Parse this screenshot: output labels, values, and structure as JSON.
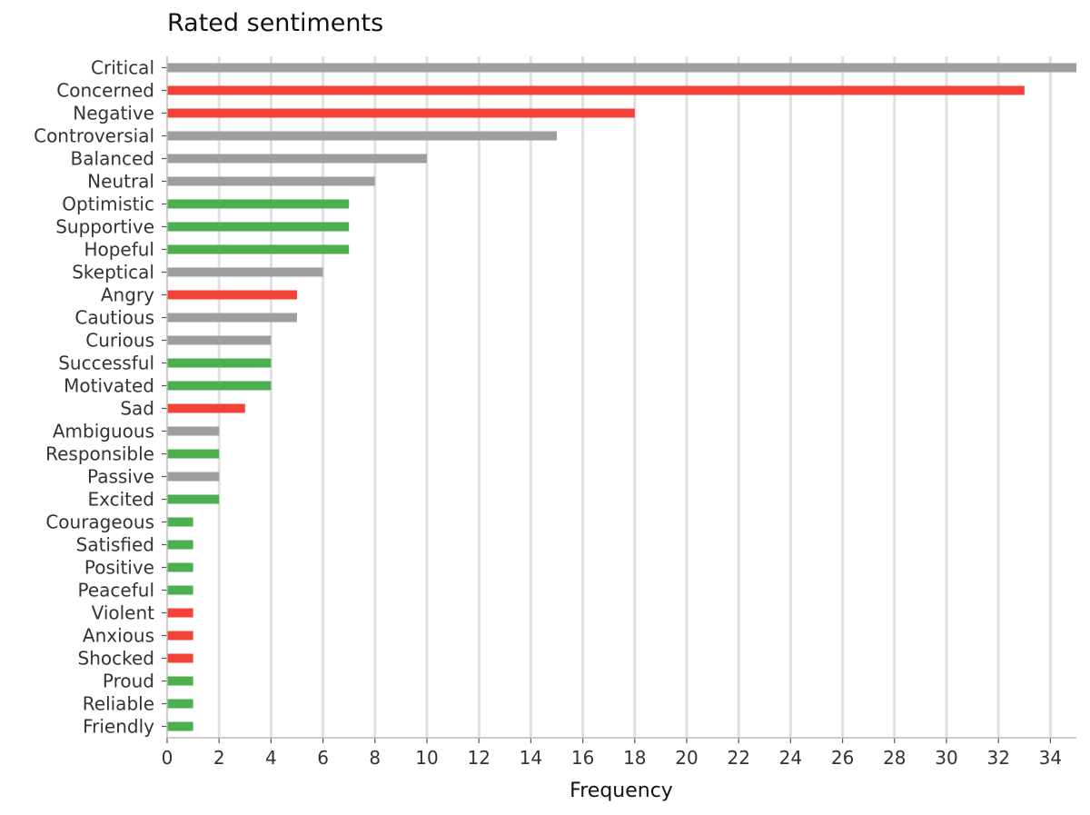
{
  "chart_data": {
    "type": "bar",
    "orientation": "horizontal",
    "title": "Rated sentiments",
    "xlabel": "Frequency",
    "ylabel": "",
    "xlim": [
      0,
      35
    ],
    "x_ticks": [
      0,
      2,
      4,
      6,
      8,
      10,
      12,
      14,
      16,
      18,
      20,
      22,
      24,
      26,
      28,
      30,
      32,
      34
    ],
    "grid": "vertical",
    "colors": {
      "positive": "#4caf50",
      "negative": "#f44336",
      "neutral": "#9e9e9e"
    },
    "categories": [
      "Critical",
      "Concerned",
      "Negative",
      "Controversial",
      "Balanced",
      "Neutral",
      "Optimistic",
      "Supportive",
      "Hopeful",
      "Skeptical",
      "Angry",
      "Cautious",
      "Curious",
      "Successful",
      "Motivated",
      "Sad",
      "Ambiguous",
      "Responsible",
      "Passive",
      "Excited",
      "Courageous",
      "Satisfied",
      "Positive",
      "Peaceful",
      "Violent",
      "Anxious",
      "Shocked",
      "Proud",
      "Reliable",
      "Friendly"
    ],
    "values": [
      35,
      33,
      18,
      15,
      10,
      8,
      7,
      7,
      7,
      6,
      5,
      5,
      4,
      4,
      4,
      3,
      2,
      2,
      2,
      2,
      1,
      1,
      1,
      1,
      1,
      1,
      1,
      1,
      1,
      1
    ],
    "bar_colors": [
      "#9e9e9e",
      "#f44336",
      "#f44336",
      "#9e9e9e",
      "#9e9e9e",
      "#9e9e9e",
      "#4caf50",
      "#4caf50",
      "#4caf50",
      "#9e9e9e",
      "#f44336",
      "#9e9e9e",
      "#9e9e9e",
      "#4caf50",
      "#4caf50",
      "#f44336",
      "#9e9e9e",
      "#4caf50",
      "#9e9e9e",
      "#4caf50",
      "#4caf50",
      "#4caf50",
      "#4caf50",
      "#4caf50",
      "#f44336",
      "#f44336",
      "#f44336",
      "#4caf50",
      "#4caf50",
      "#4caf50"
    ]
  }
}
